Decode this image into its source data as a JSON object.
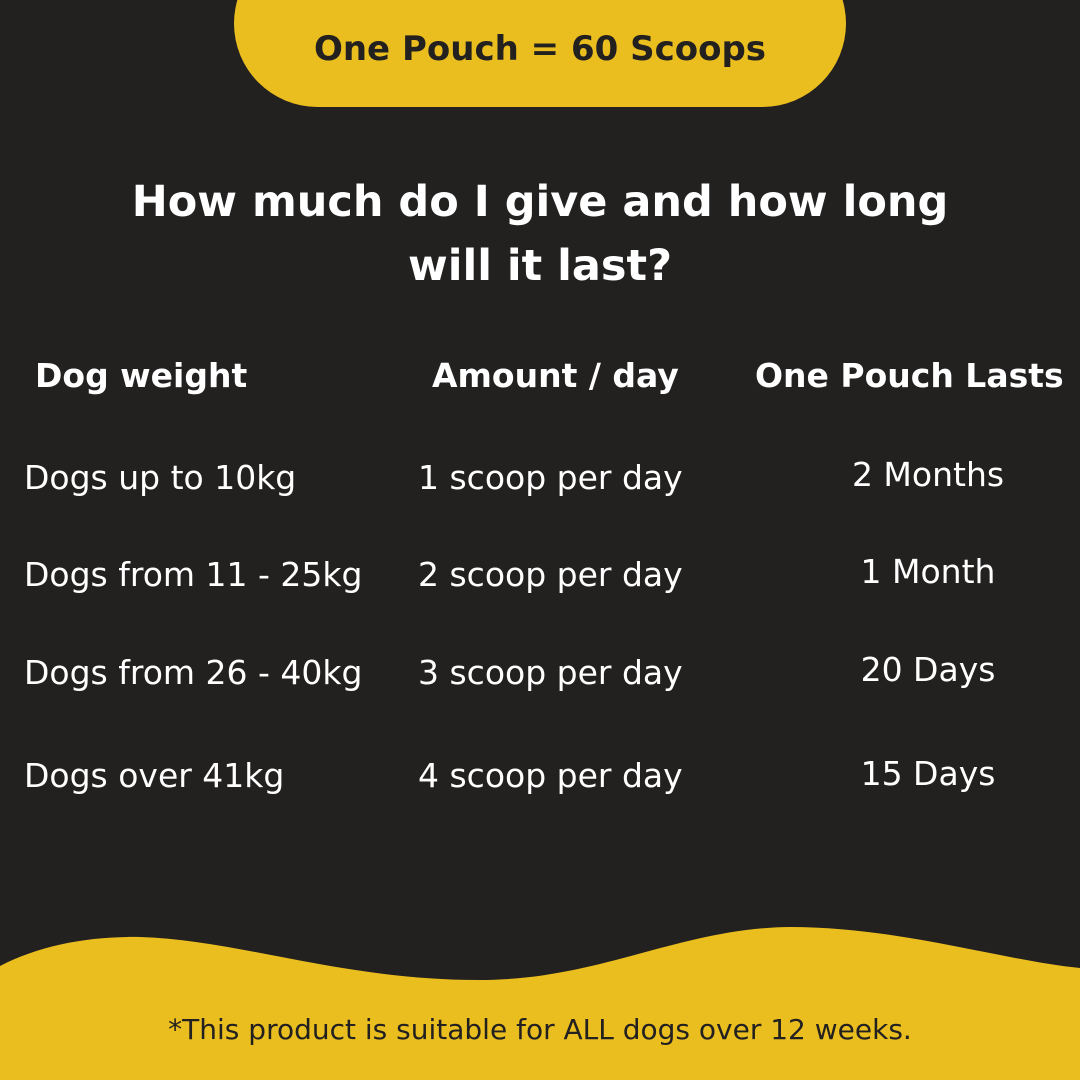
{
  "banner": {
    "text": "One Pouch = 60 Scoops"
  },
  "title": {
    "line1": "How much do I give and how long",
    "line2": "will it last?"
  },
  "table": {
    "headers": [
      "Dog weight",
      "Amount / day",
      "One Pouch Lasts"
    ],
    "rows": [
      [
        "Dogs up to 10kg",
        "1 scoop per day",
        "2 Months"
      ],
      [
        "Dogs from 11 - 25kg",
        "2 scoop per day",
        "1 Month"
      ],
      [
        "Dogs from 26 - 40kg",
        "3 scoop per day",
        "20 Days"
      ],
      [
        "Dogs over 41kg",
        "4 scoop per day",
        "15 Days"
      ]
    ]
  },
  "footer": {
    "note": "*This product is suitable for ALL dogs over 12 weeks."
  },
  "colors": {
    "background": "#232120",
    "accent": "#EBBE1F"
  }
}
